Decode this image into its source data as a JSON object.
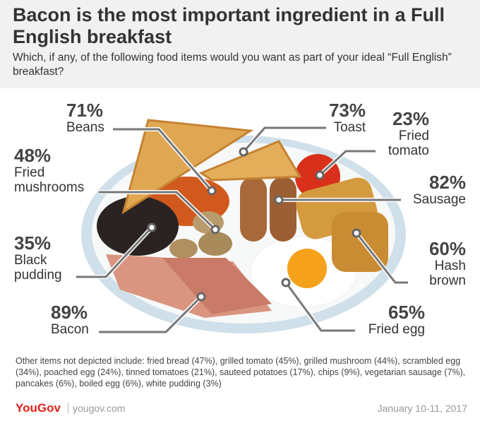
{
  "header": {
    "title": "Bacon is the most important ingredient in a Full English breakfast",
    "subtitle": "Which, if any, of the following food items would you want as part of your ideal “Full English” breakfast?"
  },
  "items": [
    {
      "value": "71%",
      "label": "Beans"
    },
    {
      "value": "73%",
      "label": "Toast"
    },
    {
      "value": "23%",
      "label": "Fried tomato"
    },
    {
      "value": "48%",
      "label": "Fried mushrooms"
    },
    {
      "value": "82%",
      "label": "Sausage"
    },
    {
      "value": "35%",
      "label": "Black pudding"
    },
    {
      "value": "60%",
      "label": "Hash brown"
    },
    {
      "value": "89%",
      "label": "Bacon"
    },
    {
      "value": "65%",
      "label": "Fried egg"
    }
  ],
  "note": "Other items not depicted include: fried bread (47%), grilled tomato (45%), grilled mushroom (44%), scrambled egg (34%), poached egg (24%), tinned tomatoes (21%), sauteed potatoes (17%), chips (9%), vegetarian sausage (7%), pancakes (6%), boiled egg (6%), white pudding (3%)",
  "footer": {
    "brand": "YouGov",
    "site": "yougov.com",
    "date": "January 10-11, 2017"
  }
}
